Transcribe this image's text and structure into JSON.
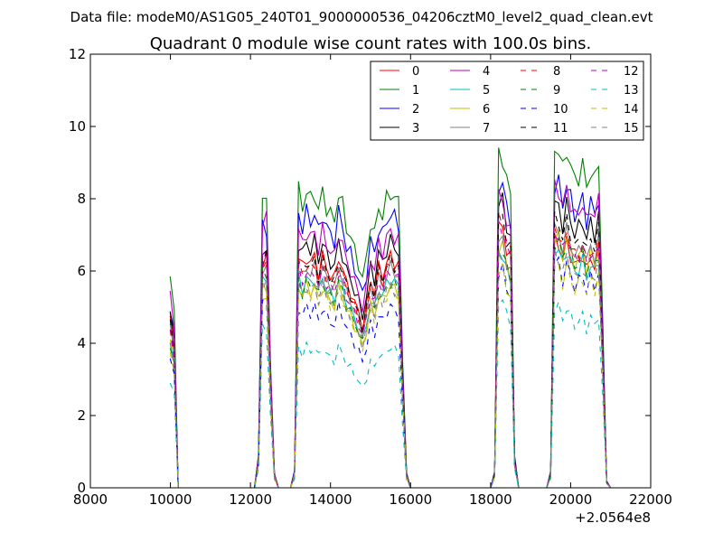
{
  "suptitle": "Data file: modeM0/AS1G05_240T01_9000000536_04206cztM0_level2_quad_clean.evt",
  "chart_data": {
    "type": "line",
    "title": "Quadrant 0 module wise count rates with 100.0s bins.",
    "xlabel": "",
    "ylabel": "",
    "x_offset_label": "+2.0564e8",
    "xlim": [
      8000,
      22000
    ],
    "ylim": [
      0,
      12
    ],
    "xticks": [
      8000,
      10000,
      12000,
      14000,
      16000,
      18000,
      20000,
      22000
    ],
    "yticks": [
      0,
      2,
      4,
      6,
      8,
      10,
      12
    ],
    "xtick_labels": [
      "8000",
      "10000",
      "12000",
      "14000",
      "16000",
      "18000",
      "20000",
      "22000"
    ],
    "ytick_labels": [
      "0",
      "2",
      "4",
      "6",
      "8",
      "10",
      "12"
    ],
    "grid": false,
    "legend_location": "top-right",
    "legend_columns": 4,
    "segments": [
      {
        "start": 9995,
        "n": 2
      },
      {
        "start": 12200,
        "n": 5
      },
      {
        "start": 13100,
        "n": 29
      },
      {
        "start": 18100,
        "n": 6
      },
      {
        "start": 19500,
        "n": 15
      }
    ],
    "series": [
      {
        "name": "0",
        "color": "#ff0000",
        "dashed": false,
        "levels": [
          4.6,
          6.3,
          6.4,
          7.2,
          6.8
        ]
      },
      {
        "name": "1",
        "color": "#008000",
        "dashed": false,
        "levels": [
          5.9,
          7.9,
          8.2,
          9.2,
          9.4
        ]
      },
      {
        "name": "2",
        "color": "#0000ff",
        "dashed": false,
        "levels": [
          5.0,
          7.2,
          7.6,
          8.4,
          8.4
        ]
      },
      {
        "name": "3",
        "color": "#000000",
        "dashed": false,
        "levels": [
          4.8,
          6.6,
          6.8,
          7.9,
          7.8
        ]
      },
      {
        "name": "4",
        "color": "#bf00bf",
        "dashed": false,
        "levels": [
          5.3,
          7.4,
          7.1,
          8.0,
          8.3
        ]
      },
      {
        "name": "5",
        "color": "#00bfbf",
        "dashed": false,
        "levels": [
          4.1,
          5.7,
          5.8,
          6.5,
          6.6
        ]
      },
      {
        "name": "6",
        "color": "#bfbf00",
        "dashed": false,
        "levels": [
          4.2,
          5.6,
          5.6,
          6.7,
          6.9
        ]
      },
      {
        "name": "7",
        "color": "#808080",
        "dashed": false,
        "levels": [
          4.4,
          6.1,
          6.1,
          6.8,
          7.1
        ]
      },
      {
        "name": "8",
        "color": "#ff0000",
        "dashed": true,
        "levels": [
          4.3,
          6.1,
          6.2,
          7.4,
          7.1
        ]
      },
      {
        "name": "9",
        "color": "#008000",
        "dashed": true,
        "levels": [
          4.0,
          5.9,
          5.7,
          6.6,
          6.8
        ]
      },
      {
        "name": "10",
        "color": "#0000ff",
        "dashed": true,
        "levels": [
          3.6,
          5.2,
          5.0,
          6.0,
          6.2
        ]
      },
      {
        "name": "11",
        "color": "#000000",
        "dashed": true,
        "levels": [
          4.5,
          6.4,
          6.3,
          7.5,
          7.4
        ]
      },
      {
        "name": "12",
        "color": "#bf00bf",
        "dashed": true,
        "levels": [
          4.4,
          6.4,
          6.0,
          7.2,
          7.0
        ]
      },
      {
        "name": "13",
        "color": "#00bfbf",
        "dashed": true,
        "levels": [
          3.0,
          4.4,
          3.9,
          5.2,
          5.0
        ]
      },
      {
        "name": "14",
        "color": "#bfbf00",
        "dashed": true,
        "levels": [
          3.7,
          5.3,
          5.5,
          6.0,
          6.1
        ]
      },
      {
        "name": "15",
        "color": "#808080",
        "dashed": true,
        "levels": [
          3.9,
          5.6,
          5.6,
          6.3,
          6.4
        ]
      }
    ]
  }
}
